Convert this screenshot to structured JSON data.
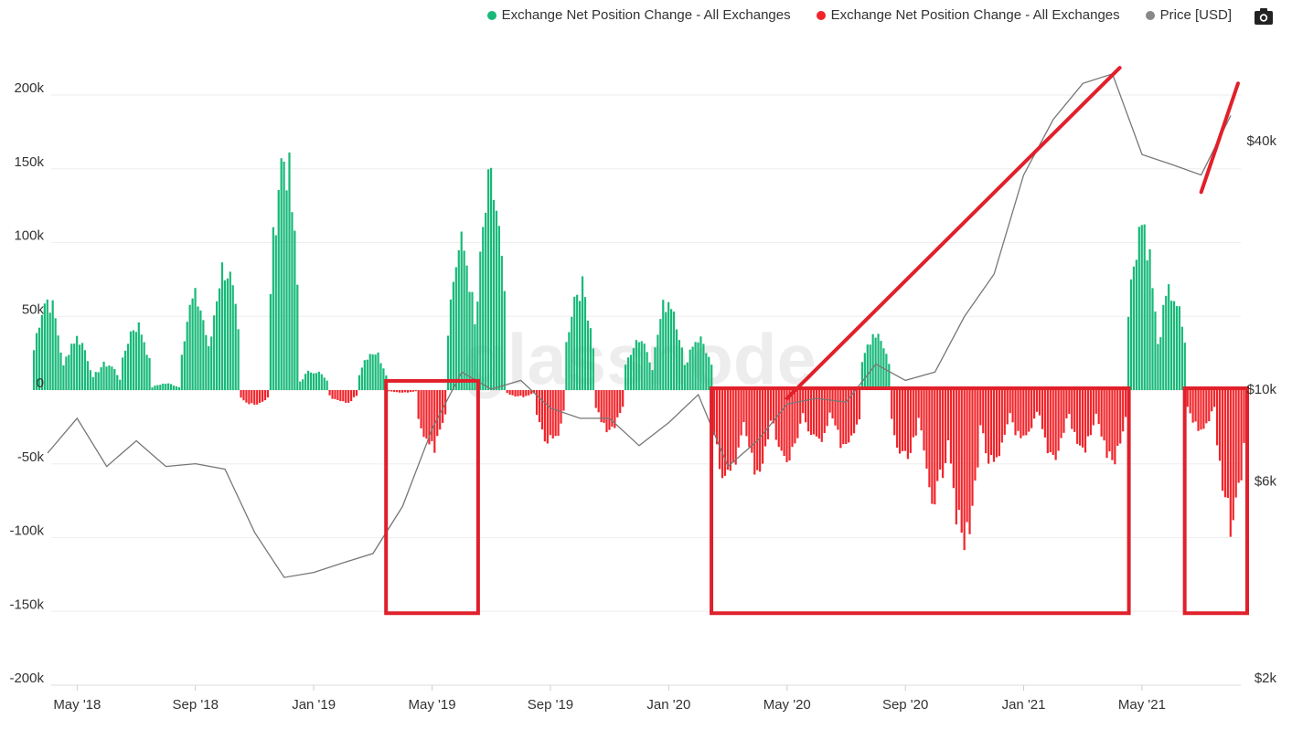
{
  "legend": {
    "items": [
      {
        "label": "Exchange Net Position Change - All Exchanges",
        "color": "#17b978"
      },
      {
        "label": "Exchange Net Position Change - All Exchanges",
        "color": "#f0242a"
      },
      {
        "label": "Price [USD]",
        "color": "#888888"
      }
    ]
  },
  "watermark": "glassnode",
  "colors": {
    "positive": "#17b978",
    "negative": "#f0242a",
    "price": "#777777",
    "annotation": "#e0202a",
    "grid": "#eeeeee"
  },
  "icons": {
    "camera": "camera-icon"
  },
  "chart_data": {
    "type": "bar",
    "x_ticks": [
      "May '18",
      "Sep '18",
      "Jan '19",
      "May '19",
      "Sep '19",
      "Jan '20",
      "May '20",
      "Sep '20",
      "Jan '21",
      "May '21"
    ],
    "y_left_ticks": [
      "200k",
      "150k",
      "100k",
      "50k",
      "0",
      "-50k",
      "-100k",
      "-150k",
      "-200k"
    ],
    "y_right_ticks": [
      "$40k",
      "$10k",
      "$6k",
      "$2k"
    ],
    "ylim_left": [
      -200000,
      200000
    ],
    "ylim_right_log": [
      2000,
      60000
    ],
    "grid": true,
    "legend_position": "top-right",
    "series": [
      {
        "name": "Exchange Net Position Change - All Exchanges",
        "axis": "left",
        "kind": "bar",
        "x": [
          "2018-04",
          "2018-05",
          "2018-06",
          "2018-07",
          "2018-08",
          "2018-09",
          "2018-10",
          "2018-11",
          "2018-12",
          "2019-01",
          "2019-02",
          "2019-03",
          "2019-04",
          "2019-05",
          "2019-06",
          "2019-07",
          "2019-08",
          "2019-09",
          "2019-10",
          "2019-11",
          "2019-12",
          "2020-01",
          "2020-02",
          "2020-03",
          "2020-04",
          "2020-05",
          "2020-06",
          "2020-07",
          "2020-08",
          "2020-09",
          "2020-10",
          "2020-11",
          "2020-12",
          "2021-01",
          "2021-02",
          "2021-03",
          "2021-04",
          "2021-05",
          "2021-06",
          "2021-07",
          "2021-08"
        ],
        "values": [
          70000,
          40000,
          20000,
          50000,
          5000,
          70000,
          95000,
          -12000,
          180000,
          15000,
          -10000,
          30000,
          -2000,
          -45000,
          110000,
          155000,
          -5000,
          -40000,
          80000,
          -30000,
          40000,
          70000,
          40000,
          -70000,
          -60000,
          -55000,
          -40000,
          -45000,
          45000,
          -55000,
          -80000,
          -120000,
          -60000,
          -40000,
          -50000,
          -45000,
          -55000,
          130000,
          75000,
          -30000,
          -100000
        ]
      },
      {
        "name": "Price [USD]",
        "axis": "right",
        "kind": "line",
        "x": [
          "2018-04",
          "2018-05",
          "2018-06",
          "2018-07",
          "2018-08",
          "2018-09",
          "2018-10",
          "2018-11",
          "2018-12",
          "2019-01",
          "2019-02",
          "2019-03",
          "2019-04",
          "2019-05",
          "2019-06",
          "2019-07",
          "2019-08",
          "2019-09",
          "2019-10",
          "2019-11",
          "2019-12",
          "2020-01",
          "2020-02",
          "2020-03",
          "2020-04",
          "2020-05",
          "2020-06",
          "2020-07",
          "2020-08",
          "2020-09",
          "2020-10",
          "2020-11",
          "2020-12",
          "2021-01",
          "2021-02",
          "2021-03",
          "2021-04",
          "2021-05",
          "2021-06",
          "2021-07",
          "2021-08"
        ],
        "values": [
          7000,
          8500,
          6500,
          7500,
          6500,
          6600,
          6400,
          4500,
          3500,
          3600,
          3800,
          4000,
          5200,
          8000,
          11000,
          10000,
          10500,
          9000,
          8500,
          8500,
          7300,
          8300,
          9700,
          6500,
          7500,
          9200,
          9500,
          9300,
          11500,
          10500,
          11000,
          15000,
          19000,
          33000,
          45000,
          55000,
          58000,
          37000,
          35000,
          33000,
          46000
        ]
      }
    ],
    "annotations": [
      {
        "type": "box",
        "x_range": [
          "2019-04",
          "2019-06"
        ],
        "y_range": [
          -150000,
          5000
        ]
      },
      {
        "type": "box",
        "x_range": [
          "2020-03",
          "2021-04"
        ],
        "y_range": [
          -150000,
          0
        ]
      },
      {
        "type": "box",
        "x_range": [
          "2021-07",
          "2021-08"
        ],
        "y_range": [
          -150000,
          0
        ]
      },
      {
        "type": "trend-line",
        "from": [
          "2020-05",
          9500
        ],
        "to": [
          "2021-04",
          60000
        ]
      },
      {
        "type": "trend-line",
        "from": [
          "2021-07",
          30000
        ],
        "to": [
          "2021-08",
          55000
        ]
      }
    ]
  }
}
